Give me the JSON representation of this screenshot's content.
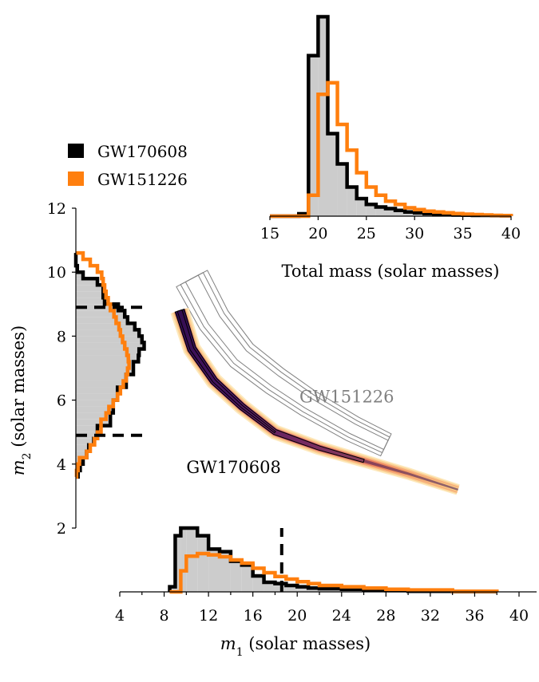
{
  "chart_data": [
    {
      "id": "total-mass",
      "type": "histogram",
      "xlabel": "Total mass (solar masses)",
      "xlim": [
        15,
        40
      ],
      "xticks": [
        15,
        20,
        25,
        30,
        35,
        40
      ],
      "bin_edges": [
        15,
        16,
        17,
        18,
        19,
        20,
        21,
        22,
        23,
        24,
        25,
        26,
        27,
        28,
        29,
        30,
        31,
        32,
        33,
        34,
        35,
        36,
        37,
        38,
        39,
        40
      ],
      "series": [
        {
          "name": "GW170608",
          "color": "#000000",
          "fill": "#cccccc",
          "values": [
            0,
            0,
            0,
            0.012,
            0.805,
            1.0,
            0.414,
            0.262,
            0.146,
            0.088,
            0.059,
            0.046,
            0.038,
            0.029,
            0.021,
            0.017,
            0.013,
            0.01,
            0.008,
            0.006,
            0.005,
            0.004,
            0.004,
            0.003,
            0.002
          ]
        },
        {
          "name": "GW151226",
          "color": "#ff7f0e",
          "fill": "none",
          "values": [
            0,
            0,
            0,
            0,
            0.105,
            0.611,
            0.669,
            0.46,
            0.331,
            0.218,
            0.146,
            0.105,
            0.075,
            0.059,
            0.042,
            0.033,
            0.025,
            0.021,
            0.017,
            0.013,
            0.01,
            0.008,
            0.006,
            0.004,
            0.003
          ]
        }
      ]
    },
    {
      "id": "m2-marginal",
      "type": "histogram",
      "orientation": "horizontal",
      "ylabel": "m2 (solar masses)",
      "ylim": [
        2,
        12
      ],
      "yticks": [
        2,
        4,
        6,
        8,
        10,
        12
      ],
      "bin_edges": [
        3.6,
        3.8,
        4.0,
        4.2,
        4.4,
        4.6,
        4.8,
        5.0,
        5.2,
        5.4,
        5.6,
        5.8,
        6.0,
        6.2,
        6.4,
        6.6,
        6.8,
        7.0,
        7.2,
        7.4,
        7.6,
        7.8,
        8.0,
        8.2,
        8.4,
        8.6,
        8.8,
        9.0,
        9.2,
        9.4,
        9.6,
        9.8,
        10.0,
        10.2,
        10.4,
        10.6
      ],
      "credible_interval": [
        4.9,
        8.9
      ],
      "series": [
        {
          "name": "GW170608",
          "color": "#000000",
          "fill": "#cccccc",
          "values": [
            0.03,
            0.06,
            0.1,
            0.15,
            0.18,
            0.25,
            0.3,
            0.3,
            0.48,
            0.48,
            0.52,
            0.52,
            0.58,
            0.58,
            0.7,
            0.7,
            0.8,
            0.8,
            0.87,
            0.88,
            0.95,
            0.92,
            0.88,
            0.82,
            0.72,
            0.68,
            0.59,
            0.4,
            0.38,
            0.38,
            0.3,
            0.1,
            0.02,
            0.0,
            0.0
          ]
        },
        {
          "name": "GW151226",
          "color": "#ff7f0e",
          "fill": "none",
          "values": [
            0.01,
            0.03,
            0.05,
            0.15,
            0.2,
            0.26,
            0.3,
            0.35,
            0.35,
            0.42,
            0.46,
            0.52,
            0.58,
            0.62,
            0.66,
            0.7,
            0.72,
            0.74,
            0.73,
            0.71,
            0.68,
            0.65,
            0.62,
            0.6,
            0.56,
            0.53,
            0.48,
            0.45,
            0.42,
            0.4,
            0.38,
            0.36,
            0.3,
            0.2,
            0.1
          ]
        }
      ]
    },
    {
      "id": "m1-marginal",
      "type": "histogram",
      "xlabel": "m1 (solar masses)",
      "xlim": [
        4,
        40
      ],
      "xticks": [
        4,
        8,
        12,
        16,
        20,
        24,
        28,
        32,
        36,
        40
      ],
      "bin_edges": [
        8.5,
        9.0,
        9.5,
        10.0,
        11.0,
        12.0,
        13.0,
        14.0,
        15.0,
        16.0,
        17.0,
        18.0,
        19.0,
        20.0,
        21.0,
        22.0,
        24.0,
        26.0,
        28.0,
        30.0,
        34.0,
        38.0
      ],
      "credible_interval_upper": 18.6,
      "series": [
        {
          "name": "GW170608",
          "color": "#000000",
          "fill": "#cccccc",
          "values": [
            0.08,
            0.88,
            1.0,
            1.0,
            0.88,
            0.67,
            0.63,
            0.48,
            0.42,
            0.25,
            0.15,
            0.13,
            0.1,
            0.08,
            0.06,
            0.05,
            0.04,
            0.03,
            0.02,
            0.01,
            0.005
          ]
        },
        {
          "name": "GW151226",
          "color": "#ff7f0e",
          "fill": "none",
          "values": [
            0.0,
            0.0,
            0.33,
            0.56,
            0.6,
            0.58,
            0.55,
            0.5,
            0.45,
            0.37,
            0.3,
            0.24,
            0.2,
            0.16,
            0.13,
            0.1,
            0.08,
            0.06,
            0.04,
            0.03,
            0.01
          ]
        }
      ]
    },
    {
      "id": "joint-m1-m2",
      "type": "contour",
      "xlim": [
        4,
        40
      ],
      "ylim": [
        2,
        12
      ],
      "series": [
        {
          "name": "GW170608",
          "label": "GW170608",
          "style": "filled-density",
          "ridge": [
            [
              9.4,
              8.8
            ],
            [
              10.5,
              7.6
            ],
            [
              12.5,
              6.6
            ],
            [
              15,
              5.8
            ],
            [
              18,
              5.0
            ],
            [
              22,
              4.5
            ],
            [
              26,
              4.1
            ],
            [
              30,
              3.7
            ],
            [
              34.5,
              3.2
            ]
          ]
        },
        {
          "name": "GW151226",
          "label": "GW151226",
          "style": "contour-lines",
          "color": "#808080",
          "ridge": [
            [
              10.5,
              9.8
            ],
            [
              12.5,
              8.5
            ],
            [
              15,
              7.4
            ],
            [
              18,
              6.6
            ],
            [
              21,
              5.9
            ],
            [
              25,
              5.1
            ],
            [
              28,
              4.6
            ]
          ]
        }
      ]
    }
  ],
  "legend": {
    "placement": "top-left",
    "items": [
      {
        "label": "GW170608",
        "color": "#000000"
      },
      {
        "label": "GW151226",
        "color": "#ff7f0e"
      }
    ]
  }
}
